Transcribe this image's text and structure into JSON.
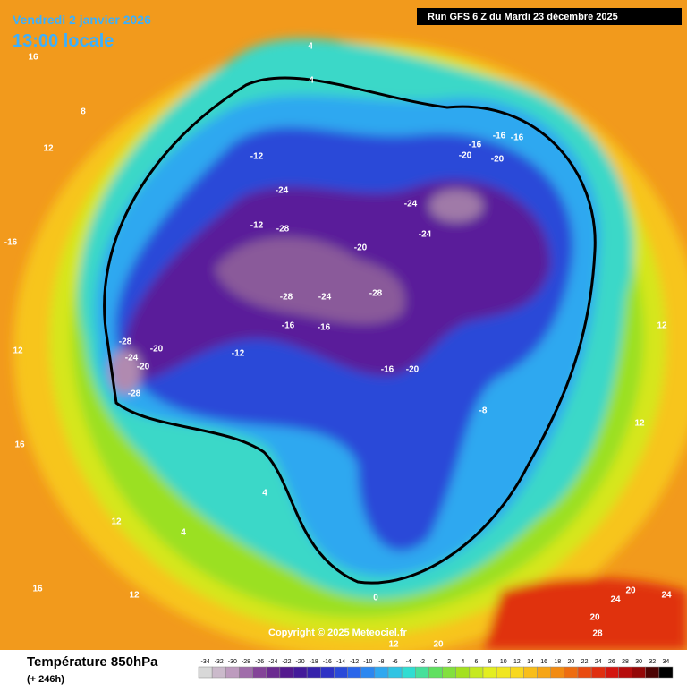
{
  "header": {
    "valid_date": "Vendredi 2 janvier 2026",
    "local_time": "13:00 locale",
    "run_info": "Run GFS 6 Z du Mardi 23 décembre 2025",
    "copyright": "Copyright © 2025 Meteociel.fr"
  },
  "footer": {
    "title": "Température 850hPa",
    "lead_time": "(+ 246h)"
  },
  "colorbar": {
    "ticks": [
      -34,
      -32,
      -30,
      -28,
      -26,
      -24,
      -22,
      -20,
      -18,
      -16,
      -14,
      -12,
      -10,
      -8,
      -6,
      -4,
      -2,
      0,
      2,
      4,
      6,
      8,
      10,
      12,
      14,
      16,
      18,
      20,
      22,
      24,
      26,
      28,
      30,
      32,
      34
    ]
  },
  "contour_labels": [
    -28,
    -20,
    -24,
    -20,
    -28,
    -28,
    -24,
    -28,
    -20,
    -28,
    -12,
    -16,
    -16,
    -16,
    -20,
    -12,
    -8,
    -24,
    -24,
    -16,
    -16,
    -16,
    -20,
    -20,
    -12,
    -24,
    4,
    4,
    8,
    12,
    16,
    -16,
    12,
    16,
    4,
    4,
    0,
    12,
    20,
    28,
    20,
    24,
    20,
    24,
    12,
    12,
    16,
    12,
    12
  ]
}
